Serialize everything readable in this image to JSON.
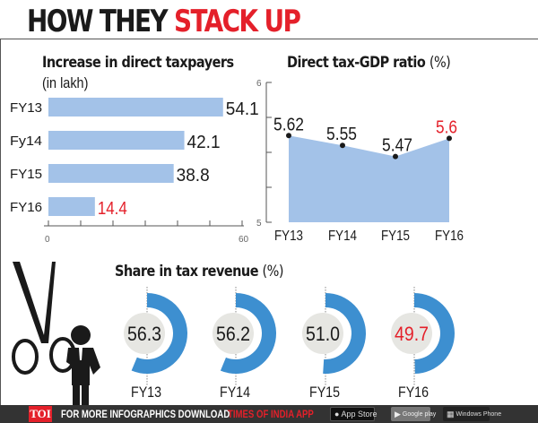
{
  "title": {
    "part1": "HOW THEY ",
    "part2": "STACK UP"
  },
  "colors": {
    "accent_red": "#e4202a",
    "bar_blue": "#a3c2e8",
    "ring_blue": "#3d8fd0",
    "center_gray": "#e6e6e2",
    "footer": "#333333"
  },
  "chart_data": [
    {
      "type": "bar",
      "orientation": "horizontal",
      "title": "Increase in direct taxpayers",
      "subtitle": "(in lakh)",
      "categories": [
        "FY13",
        "Fy14",
        "FY15",
        "FY16"
      ],
      "values": [
        54.1,
        42.1,
        38.8,
        14.4
      ],
      "labels": [
        "54.1",
        "42.1",
        "38.8",
        "14.4"
      ],
      "highlight": [
        false,
        false,
        false,
        true
      ],
      "xlim": [
        0,
        60
      ],
      "xticks": [
        0,
        10,
        20,
        30,
        40,
        50,
        60
      ],
      "xtick_labels": [
        "0",
        "60"
      ]
    },
    {
      "type": "area",
      "title": "Direct tax-GDP ratio",
      "unit": "(%)",
      "categories": [
        "FY13",
        "FY14",
        "FY15",
        "FY16"
      ],
      "values": [
        5.62,
        5.55,
        5.47,
        5.6
      ],
      "labels": [
        "5.62",
        "5.55",
        "5.47",
        "5.6"
      ],
      "highlight": [
        false,
        false,
        false,
        true
      ],
      "ylim": [
        5,
        6
      ],
      "yticks": [
        5,
        5.25,
        5.5,
        5.75,
        6
      ],
      "ytick_labels": [
        "5",
        "6"
      ]
    },
    {
      "type": "pie",
      "style": "donut",
      "title": "Share in tax revenue",
      "unit": "(%)",
      "categories": [
        "FY13",
        "FY14",
        "FY15",
        "FY16"
      ],
      "values": [
        56.3,
        56.2,
        51.0,
        49.7
      ],
      "labels": [
        "56.3",
        "56.2",
        "51.0",
        "49.7"
      ],
      "highlight": [
        false,
        false,
        false,
        true
      ]
    }
  ],
  "footer": {
    "brand": "TOI",
    "text": "FOR MORE  INFOGRAPHICS DOWNLOAD",
    "app": "TIMES OF INDIA  APP",
    "app_store_small": "Available on the",
    "app_store": "App Store",
    "google_play": "Google play",
    "windows": "Windows Phone"
  }
}
